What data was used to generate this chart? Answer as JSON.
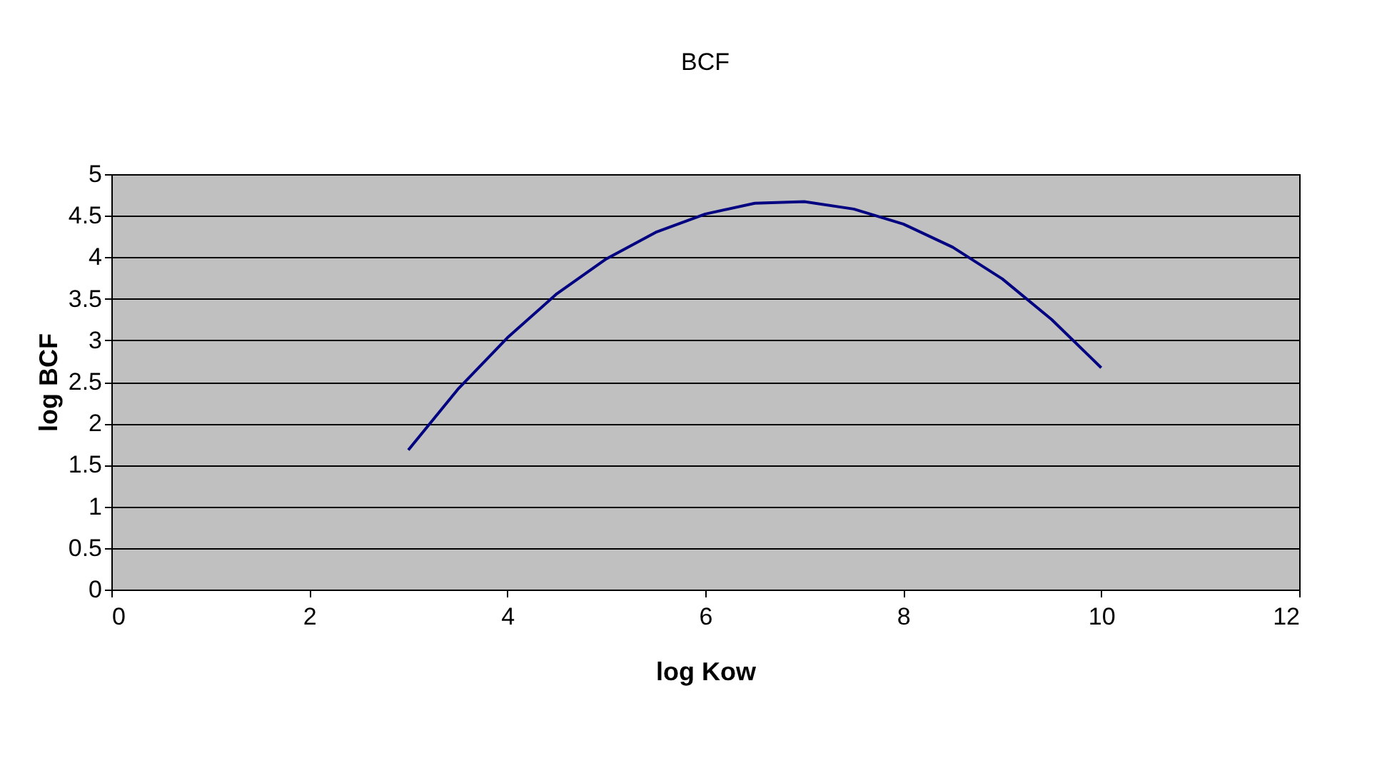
{
  "chart_data": {
    "type": "line",
    "title": "BCF",
    "xlabel": "log Kow",
    "ylabel": "log BCF",
    "x": [
      3,
      3.5,
      4,
      4.5,
      5,
      5.5,
      6,
      6.5,
      7,
      7.5,
      8,
      8.5,
      9,
      9.5,
      10
    ],
    "series": [
      {
        "color": "#000080",
        "values": [
          1.68,
          2.41,
          3.03,
          3.56,
          3.98,
          4.3,
          4.52,
          4.65,
          4.67,
          4.58,
          4.4,
          4.12,
          3.74,
          3.25,
          2.67
        ]
      }
    ],
    "xlim": [
      0,
      12
    ],
    "xticks": [
      0,
      2,
      4,
      6,
      8,
      10,
      12
    ],
    "ylim": [
      0,
      5
    ],
    "yticks": [
      0,
      0.5,
      1,
      1.5,
      2,
      2.5,
      3,
      3.5,
      4,
      4.5,
      5
    ],
    "grid": "y",
    "marker": "none",
    "line_style": "solid"
  }
}
